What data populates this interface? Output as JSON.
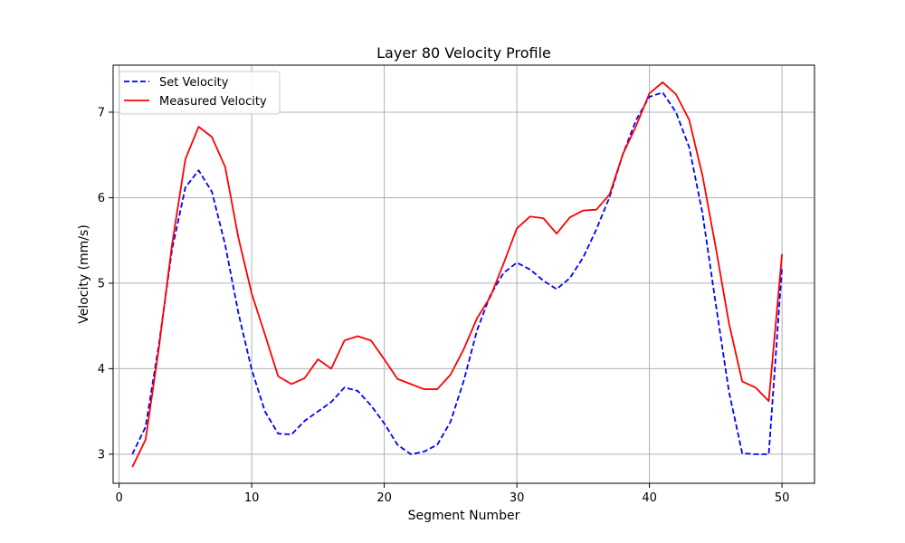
{
  "chart_data": {
    "type": "line",
    "title": "Layer 80 Velocity Profile",
    "xlabel": "Segment Number",
    "ylabel": "Velocity (mm/s)",
    "xlim": [
      -0.45,
      52.45
    ],
    "ylim": [
      2.66,
      7.55
    ],
    "xticks": [
      0,
      10,
      20,
      30,
      40,
      50
    ],
    "yticks": [
      3,
      4,
      5,
      6,
      7
    ],
    "grid": true,
    "legend_position": "top-left",
    "x": [
      1,
      2,
      3,
      4,
      5,
      6,
      7,
      8,
      9,
      10,
      11,
      12,
      13,
      14,
      15,
      16,
      17,
      18,
      19,
      20,
      21,
      22,
      23,
      24,
      25,
      26,
      27,
      28,
      29,
      30,
      31,
      32,
      33,
      34,
      35,
      36,
      37,
      38,
      39,
      40,
      41,
      42,
      43,
      44,
      45,
      46,
      47,
      48,
      49,
      50
    ],
    "series": [
      {
        "name": "Set Velocity",
        "color": "#0000ff",
        "style": "dashed",
        "values": [
          3.0,
          3.32,
          4.28,
          5.4,
          6.12,
          6.32,
          6.07,
          5.45,
          4.65,
          3.99,
          3.5,
          3.24,
          3.23,
          3.39,
          3.5,
          3.61,
          3.78,
          3.74,
          3.57,
          3.36,
          3.11,
          3.0,
          3.03,
          3.11,
          3.38,
          3.86,
          4.45,
          4.86,
          5.12,
          5.24,
          5.16,
          5.03,
          4.93,
          5.06,
          5.3,
          5.63,
          6.01,
          6.51,
          6.91,
          7.18,
          7.23,
          7.0,
          6.59,
          5.82,
          4.76,
          3.73,
          3.01,
          3.0,
          3.0,
          5.19
        ]
      },
      {
        "name": "Measured Velocity",
        "color": "#ff0000",
        "style": "solid",
        "values": [
          2.85,
          3.17,
          4.24,
          5.46,
          6.45,
          6.83,
          6.71,
          6.36,
          5.53,
          4.88,
          4.4,
          3.91,
          3.82,
          3.89,
          4.11,
          4.0,
          4.33,
          4.38,
          4.33,
          4.11,
          3.88,
          3.82,
          3.76,
          3.76,
          3.93,
          4.23,
          4.59,
          4.84,
          5.23,
          5.64,
          5.78,
          5.76,
          5.58,
          5.77,
          5.85,
          5.86,
          6.04,
          6.51,
          6.84,
          7.22,
          7.35,
          7.21,
          6.91,
          6.26,
          5.42,
          4.53,
          3.85,
          3.78,
          3.62,
          5.34
        ]
      }
    ]
  }
}
